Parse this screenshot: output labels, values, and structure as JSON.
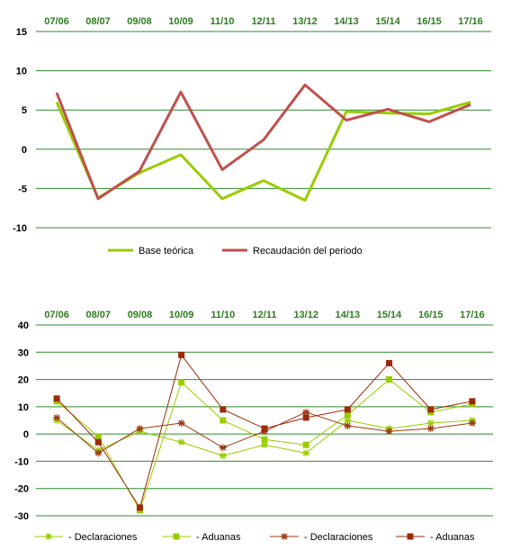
{
  "chart_data": [
    {
      "type": "line",
      "categories": [
        "07/06",
        "08/07",
        "09/08",
        "10/09",
        "11/10",
        "12/11",
        "13/12",
        "14/13",
        "15/14",
        "16/15",
        "17/16"
      ],
      "ylim": [
        -10,
        15
      ],
      "yticks": [
        15,
        10,
        5,
        0,
        -5,
        -10
      ],
      "grid": true,
      "legend_position": "bottom",
      "series": [
        {
          "name": "Base teórica",
          "color": "#99cc00",
          "marker": "none",
          "values": [
            6.0,
            -6.2,
            -3.0,
            -0.7,
            -6.3,
            -4.0,
            -6.5,
            4.8,
            4.6,
            4.5,
            6.0
          ]
        },
        {
          "name": "Recaudación del periodo",
          "color": "#c0504d",
          "marker": "none",
          "values": [
            7.2,
            -6.3,
            -2.8,
            7.3,
            -2.6,
            1.2,
            8.2,
            3.7,
            5.1,
            3.5,
            5.7
          ]
        }
      ]
    },
    {
      "type": "line",
      "categories": [
        "07/06",
        "08/07",
        "09/08",
        "10/09",
        "11/10",
        "12/11",
        "13/12",
        "14/13",
        "15/14",
        "16/15",
        "17/16"
      ],
      "ylim": [
        -30,
        40
      ],
      "yticks": [
        40,
        30,
        20,
        10,
        0,
        -10,
        -20,
        -30
      ],
      "grid": true,
      "legend_position": "bottom",
      "series": [
        {
          "name": "- Declaraciones",
          "color": "#99cc00",
          "marker": "star",
          "values": [
            5,
            -6,
            1,
            -3,
            -8,
            -4,
            -7,
            5,
            2,
            4,
            5
          ]
        },
        {
          "name": "- Aduanas",
          "color": "#99cc00",
          "marker": "square",
          "values": [
            12,
            -1,
            -28,
            19,
            5,
            -2,
            -4,
            7,
            20,
            8,
            11
          ]
        },
        {
          "name": "- Declaraciones",
          "color": "#9c3a12",
          "marker": "star",
          "values": [
            6,
            -7,
            2,
            4,
            -5,
            1,
            8,
            3,
            1,
            2,
            4
          ]
        },
        {
          "name": "- Aduanas",
          "color": "#9c2a0a",
          "marker": "square",
          "values": [
            13,
            -3,
            -27,
            29,
            9,
            2,
            6,
            9,
            26,
            9,
            12
          ]
        }
      ]
    }
  ]
}
